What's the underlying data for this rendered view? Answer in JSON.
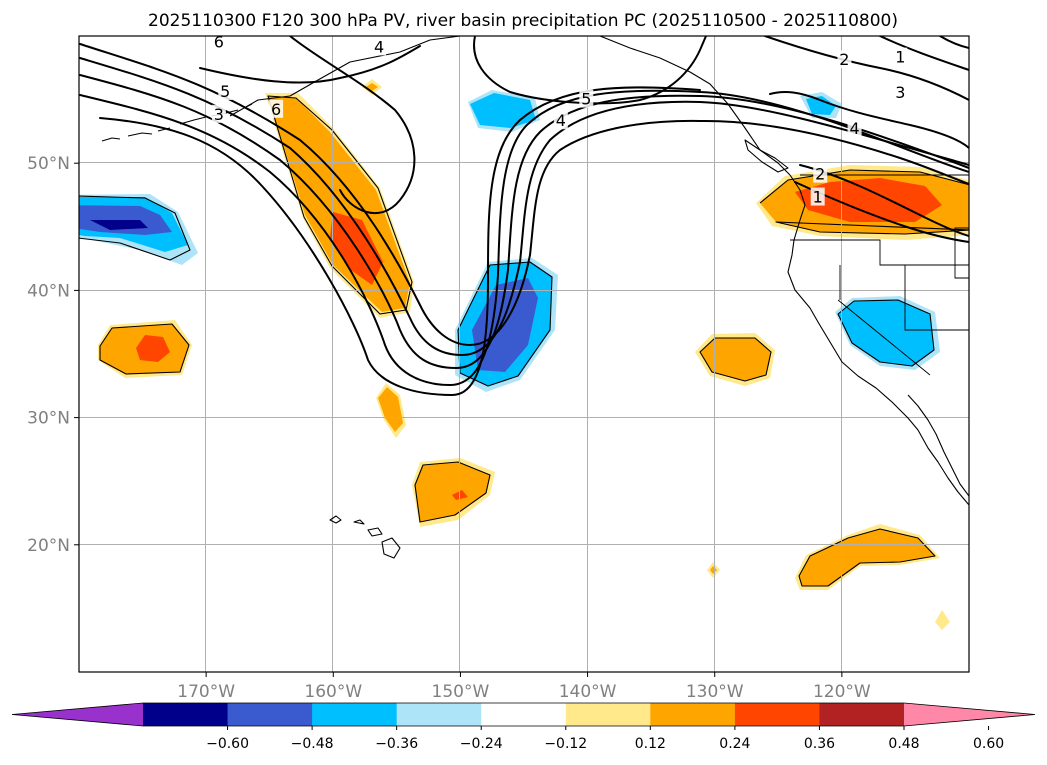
{
  "chart_data": {
    "type": "filled-contour map",
    "title": "2025110300 F120 300 hPa PV, river basin precipitation PC (2025110500 - 2025110800)",
    "lon_range": [
      -180,
      -110
    ],
    "lat_range": [
      10,
      60
    ],
    "x_ticks": [
      {
        "lon": -170,
        "label": "170°W"
      },
      {
        "lon": -160,
        "label": "160°W"
      },
      {
        "lon": -150,
        "label": "150°W"
      },
      {
        "lon": -140,
        "label": "140°W"
      },
      {
        "lon": -130,
        "label": "130°W"
      },
      {
        "lon": -120,
        "label": "120°W"
      }
    ],
    "y_ticks": [
      {
        "lat": 20,
        "label": "20°N"
      },
      {
        "lat": 30,
        "label": "30°N"
      },
      {
        "lat": 40,
        "label": "40°N"
      },
      {
        "lat": 50,
        "label": "50°N"
      }
    ],
    "colorbar": {
      "levels": [
        -0.6,
        -0.48,
        -0.36,
        -0.24,
        -0.12,
        0.12,
        0.24,
        0.36,
        0.48,
        0.6
      ],
      "tick_labels": [
        "−0.60",
        "−0.48",
        "−0.36",
        "−0.24",
        "−0.12",
        "0.12",
        "0.24",
        "0.36",
        "0.48",
        "0.60"
      ],
      "colors": [
        "#9932cc",
        "#00008b",
        "#3a5bd0",
        "#00bfff",
        "#ade4f8",
        "#ffffff",
        "#ffe98b",
        "#ffa500",
        "#ff4500",
        "#b22222",
        "#ff88a8"
      ],
      "extend": "both"
    },
    "pv_contour_labels": [
      {
        "value": "6",
        "lon": -169,
        "lat": 59.5
      },
      {
        "value": "5",
        "lon": -168.5,
        "lat": 55.6
      },
      {
        "value": "3",
        "lon": -169,
        "lat": 53.8
      },
      {
        "value": "6",
        "lon": -164.5,
        "lat": 54.2
      },
      {
        "value": "4",
        "lon": -156.4,
        "lat": 59.1
      },
      {
        "value": "5",
        "lon": -140.1,
        "lat": 55.0
      },
      {
        "value": "4",
        "lon": -142.1,
        "lat": 53.3
      },
      {
        "value": "2",
        "lon": -119.8,
        "lat": 58.1
      },
      {
        "value": "1",
        "lon": -115.4,
        "lat": 58.3
      },
      {
        "value": "3",
        "lon": -115.4,
        "lat": 55.5
      },
      {
        "value": "4",
        "lon": -119,
        "lat": 52.7
      },
      {
        "value": "2",
        "lon": -121.7,
        "lat": 49.1
      },
      {
        "value": "1",
        "lon": -121.9,
        "lat": 47.3
      }
    ],
    "pc_anomalies": [
      {
        "lon": -175,
        "lat": 45.5,
        "max_category": -0.6
      },
      {
        "lon": -158,
        "lat": 44,
        "max_category": 0.48
      },
      {
        "lon": -174,
        "lat": 35,
        "max_category": 0.48
      },
      {
        "lon": -147,
        "lat": 37,
        "max_category": -0.48
      },
      {
        "lon": -148.5,
        "lat": 55,
        "max_category": -0.36
      },
      {
        "lon": -119,
        "lat": 55.2,
        "max_category": -0.36
      },
      {
        "lon": -118,
        "lat": 47,
        "max_category": 0.48
      },
      {
        "lon": -117.5,
        "lat": 37,
        "max_category": -0.36
      },
      {
        "lon": -128,
        "lat": 34.5,
        "max_category": 0.36
      },
      {
        "lon": -150.5,
        "lat": 23.5,
        "max_category": 0.48
      },
      {
        "lon": -155.5,
        "lat": 31,
        "max_category": 0.36
      },
      {
        "lon": -120,
        "lat": 19.5,
        "max_category": 0.36
      }
    ]
  }
}
